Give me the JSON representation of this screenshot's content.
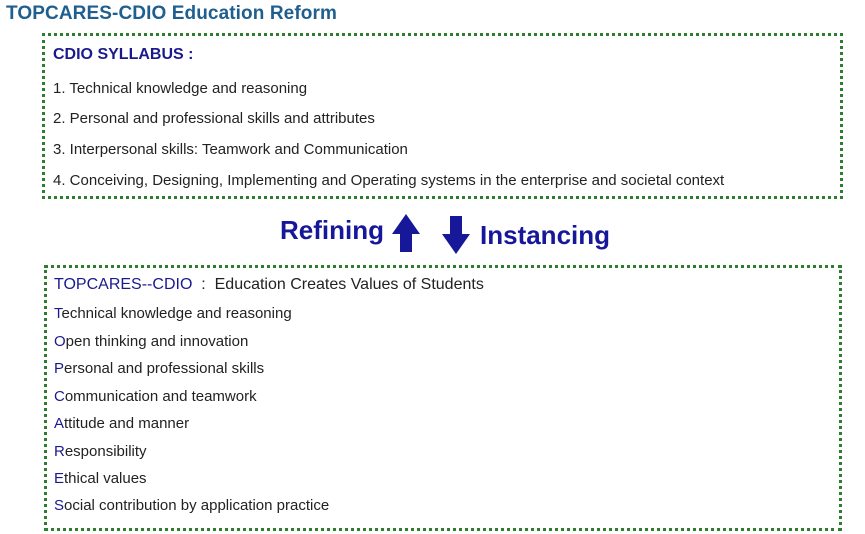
{
  "title": "TOPCARES-CDIO Education Reform",
  "syllabus": {
    "heading": "CDIO  SYLLABUS :",
    "items": [
      "1. Technical knowledge and reasoning",
      "2. Personal and professional skills and attributes",
      "3. Interpersonal skills:  Teamwork and Communication",
      "4. Conceiving, Designing, Implementing and Operating systems in the  enterprise and societal context"
    ]
  },
  "arrows": {
    "up_label": "Refining",
    "down_label": "Instancing"
  },
  "topcares": {
    "brand": "TOPCARES--CDIO",
    "heading_rest": "  :  Education Creates Values of Students",
    "items": [
      {
        "initial": "T",
        "rest": "echnical knowledge and reasoning"
      },
      {
        "initial": "O",
        "rest": "pen thinking and innovation"
      },
      {
        "initial": "P",
        "rest": "ersonal and professional skills"
      },
      {
        "initial": "C",
        "rest": "ommunication and teamwork"
      },
      {
        "initial": "A",
        "rest": "ttitude and manner"
      },
      {
        "initial": "R",
        "rest": "esponsibility"
      },
      {
        "initial": "E",
        "rest": "thical values"
      },
      {
        "initial": "S",
        "rest": "ocial contribution by application practice"
      }
    ]
  },
  "colors": {
    "title": "#1f5f8f",
    "accent": "#1a1a8c",
    "arrow": "#17179a",
    "border": "#2f7d2f"
  }
}
